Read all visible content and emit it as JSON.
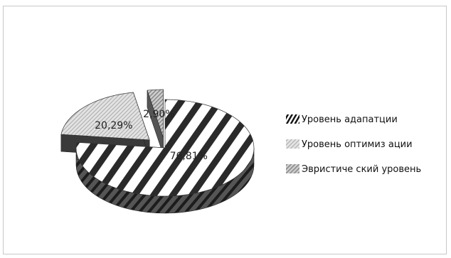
{
  "chart_data": {
    "type": "pie",
    "style": "3d-exploded",
    "series": [
      {
        "name": "Уровень адапатции",
        "value": 76.81,
        "label": "76,81%",
        "pattern": "diagonal-stripes-wide"
      },
      {
        "name": "Уровень оптимиз ации",
        "value": 20.29,
        "label": "20,29%",
        "pattern": "light-hatch"
      },
      {
        "name": "Эвристиче ский уровень",
        "value": 2.9,
        "label": "2,90%",
        "pattern": "fine-hatch"
      }
    ],
    "legend_position": "right"
  }
}
